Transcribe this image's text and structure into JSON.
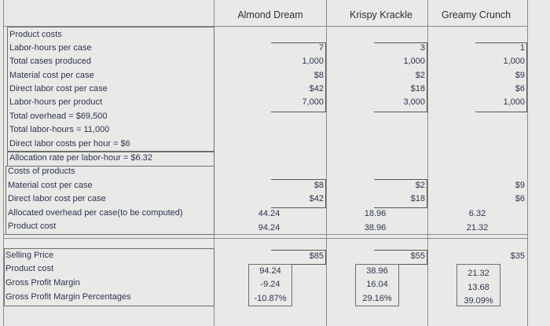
{
  "headers": {
    "col1": "Almond Dream",
    "col2": "Krispy Krackle",
    "col3": "Greamy Crunch"
  },
  "labels_top": [
    "Product costs",
    "Labor-hours per case",
    "Total cases produced",
    "Material cost per case",
    "Direct labor cost per case",
    "Labor-hours per product",
    "Total overhead = $69,500",
    "Total labor-hours = 11,000",
    "Direct labor costs per hour = $6"
  ],
  "allocation_label": "Allocation rate per labor-hour = $6.32",
  "labels_mid": [
    "Costs of products",
    "Material cost per case",
    "Direct labor cost per case",
    "Allocated overhead per case(to be computed)",
    "Product cost"
  ],
  "labels_bottom": [
    "Selling Price",
    "Product cost",
    "Gross Profit Margin",
    "Gross Profit Margin Percentages"
  ],
  "product_inputs": {
    "almond": [
      "7",
      "1,000",
      "$8",
      "$42",
      "7,000"
    ],
    "krispy": [
      "3",
      "1,000",
      "$2",
      "$18",
      "3,000"
    ],
    "greamy": [
      "1",
      "1,000",
      "$9",
      "$6",
      "1,000"
    ]
  },
  "cost_inputs": {
    "almond": [
      "$8",
      "$42"
    ],
    "krispy": [
      "$2",
      "$18"
    ],
    "greamy": [
      "$9",
      "$6"
    ]
  },
  "computed_costs": {
    "almond": [
      "44.24",
      "94.24"
    ],
    "krispy": [
      "18.96",
      "38.96"
    ],
    "greamy": [
      "6.32",
      "21.32"
    ]
  },
  "selling_price": {
    "almond": "$85",
    "krispy": "$55",
    "greamy": "$35"
  },
  "margins": {
    "almond": [
      "94.24",
      "-9.24",
      "-10.87%"
    ],
    "krispy": [
      "38.96",
      "16.04",
      "29.16%"
    ],
    "greamy": [
      "21.32",
      "13.68",
      "39.09%"
    ]
  }
}
